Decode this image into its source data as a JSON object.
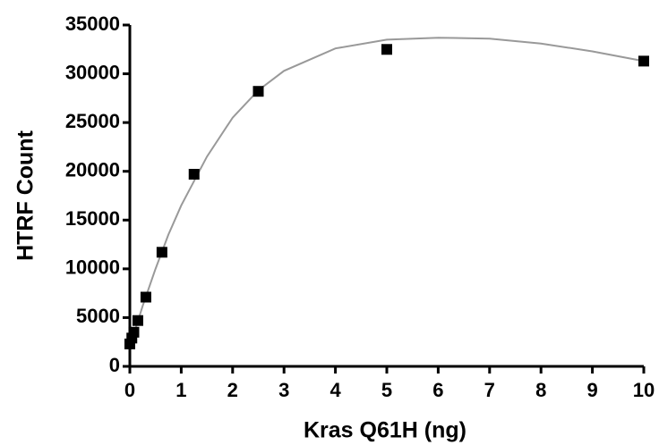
{
  "chart_data": {
    "type": "scatter",
    "x_label": "Kras Q61H (ng)",
    "y_label": "HTRF Count",
    "x": [
      0,
      0.039,
      0.078,
      0.156,
      0.3125,
      0.625,
      1.25,
      2.5,
      5,
      10
    ],
    "series": [
      {
        "color": "#000000",
        "values": [
          2300,
          2900,
          3500,
          4700,
          7100,
          11700,
          19700,
          28200,
          32500,
          31300
        ]
      }
    ],
    "fit": {
      "color": "#999999",
      "x": [
        0,
        0.25,
        0.5,
        0.75,
        1,
        1.5,
        2,
        2.5,
        3,
        4,
        5,
        6,
        7,
        8,
        9,
        10
      ],
      "y": [
        2000,
        6200,
        10000,
        13500,
        16500,
        21500,
        25500,
        28300,
        30300,
        32600,
        33500,
        33700,
        33600,
        33100,
        32300,
        31300
      ]
    },
    "xlim": [
      0,
      10
    ],
    "xticks": [
      0,
      1,
      2,
      3,
      4,
      5,
      6,
      7,
      8,
      9,
      10
    ],
    "ylim": [
      0,
      35000
    ],
    "yticks": [
      0,
      5000,
      10000,
      15000,
      20000,
      25000,
      30000,
      35000
    ]
  }
}
